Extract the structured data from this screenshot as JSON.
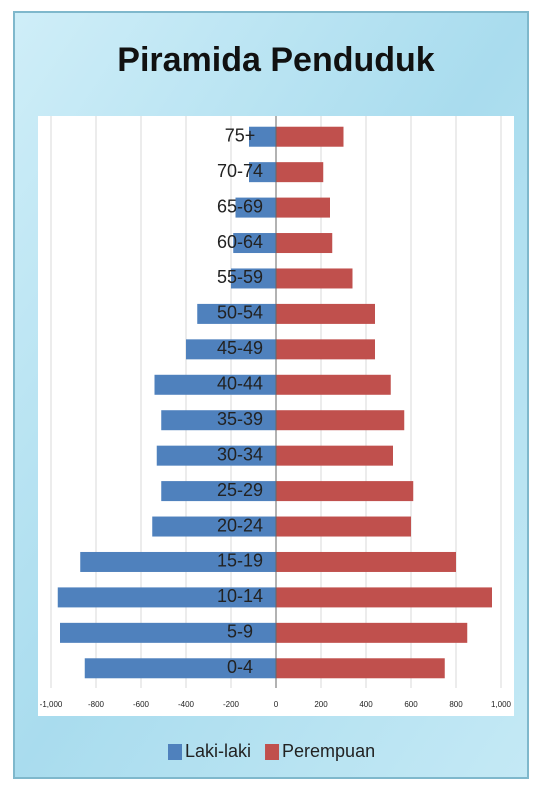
{
  "chart_data": {
    "type": "pyramid",
    "title": "Piramida Penduduk",
    "categories": [
      "0-4",
      "5-9",
      "10-14",
      "15-19",
      "20-24",
      "25-29",
      "30-34",
      "35-39",
      "40-44",
      "45-49",
      "50-54",
      "55-59",
      "60-64",
      "65-69",
      "70-74",
      "75+"
    ],
    "series": [
      {
        "name": "Laki-laki",
        "color": "#4f81bd",
        "values": [
          -850,
          -960,
          -970,
          -870,
          -550,
          -510,
          -530,
          -510,
          -540,
          -400,
          -350,
          -200,
          -190,
          -180,
          -120,
          -120
        ]
      },
      {
        "name": "Perempuan",
        "color": "#c0504d",
        "values": [
          750,
          850,
          960,
          800,
          600,
          610,
          520,
          570,
          510,
          440,
          440,
          340,
          250,
          240,
          210,
          300
        ]
      }
    ],
    "xlim": [
      -1000,
      1000
    ],
    "xticks": [
      {
        "value": -1000,
        "label": "-1,000"
      },
      -800,
      -600,
      -400,
      -200,
      0,
      200,
      400,
      600,
      800,
      {
        "value": 1000,
        "label": "1,000"
      }
    ],
    "grid": true,
    "legend": "bottom"
  }
}
